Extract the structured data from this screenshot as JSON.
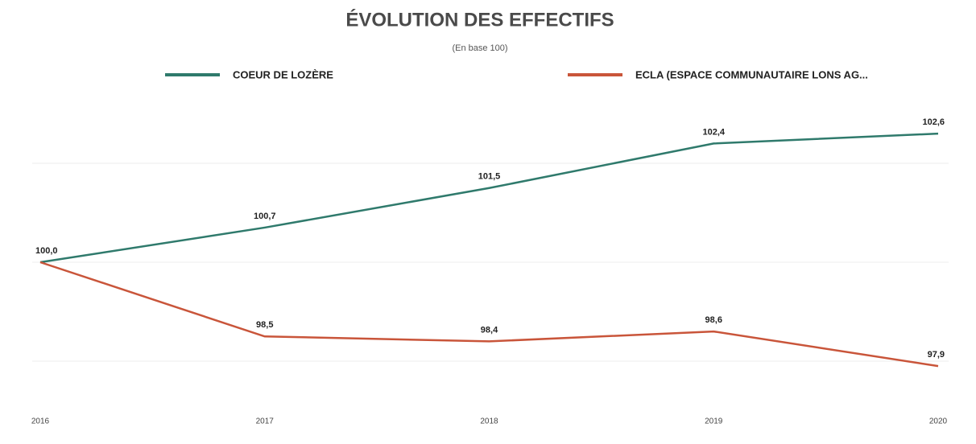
{
  "chart_data": {
    "type": "line",
    "title": "ÉVOLUTION DES EFFECTIFS",
    "subtitle": "(En base 100)",
    "categories": [
      "2016",
      "2017",
      "2018",
      "2019",
      "2020"
    ],
    "series": [
      {
        "name": "COEUR DE LOZÈRE",
        "color": "#2f7a6c",
        "values": [
          100.0,
          100.7,
          101.5,
          102.4,
          102.6
        ],
        "value_labels": [
          "100,0",
          "100,7",
          "101,5",
          "102,4",
          "102,6"
        ]
      },
      {
        "name": "ECLA (ESPACE COMMUNAUTAIRE LONS AG...",
        "color": "#c9553a",
        "values": [
          100.0,
          98.5,
          98.4,
          98.6,
          97.9
        ],
        "value_labels": [
          "100,0",
          "98,5",
          "98,4",
          "98,6",
          "97,9"
        ]
      }
    ],
    "ylim": [
      97,
      103
    ],
    "yticks": [
      98,
      100,
      102
    ],
    "grid": true
  }
}
